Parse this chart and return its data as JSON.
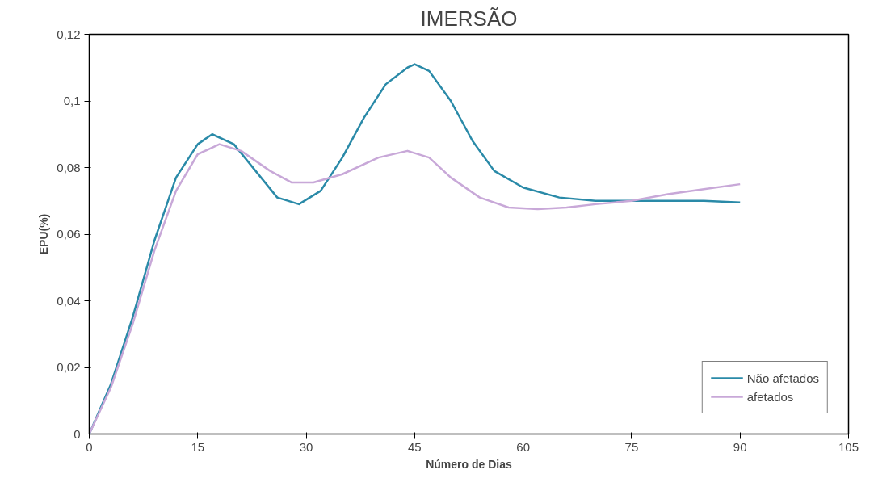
{
  "chart_data": {
    "type": "line",
    "title": "IMERSÃO",
    "xlabel": "Número de Dias",
    "ylabel": "EPU(%)",
    "xlim": [
      0,
      105
    ],
    "xticks": [
      0,
      15,
      30,
      45,
      60,
      75,
      90,
      105
    ],
    "ylim": [
      0,
      0.12
    ],
    "yticks": [
      {
        "value": 0,
        "label": "0"
      },
      {
        "value": 0.02,
        "label": "0,02"
      },
      {
        "value": 0.04,
        "label": "0,04"
      },
      {
        "value": 0.06,
        "label": "0,06"
      },
      {
        "value": 0.08,
        "label": "0,08"
      },
      {
        "value": 0.1,
        "label": "0,1"
      },
      {
        "value": 0.12,
        "label": "0,12"
      }
    ],
    "grid": false,
    "legend": "bottom right",
    "marker": "none",
    "line_style": "solid",
    "series": [
      {
        "name": "Não afetados",
        "color": "#2a8aa8",
        "x": [
          0,
          3,
          6,
          9,
          12,
          15,
          17,
          20,
          23,
          26,
          29,
          32,
          35,
          38,
          41,
          44,
          45,
          47,
          50,
          53,
          56,
          60,
          65,
          70,
          75,
          80,
          85,
          90
        ],
        "values": [
          0,
          0.015,
          0.035,
          0.058,
          0.077,
          0.087,
          0.09,
          0.087,
          0.079,
          0.071,
          0.069,
          0.073,
          0.083,
          0.095,
          0.105,
          0.11,
          0.111,
          0.109,
          0.1,
          0.088,
          0.079,
          0.074,
          0.071,
          0.07,
          0.07,
          0.07,
          0.07,
          0.0695
        ]
      },
      {
        "name": "afetados",
        "color": "#c8a8d8",
        "x": [
          0,
          3,
          6,
          9,
          12,
          15,
          18,
          21,
          25,
          28,
          31,
          35,
          40,
          44,
          47,
          50,
          54,
          58,
          62,
          66,
          70,
          75,
          80,
          85,
          90
        ],
        "values": [
          0,
          0.014,
          0.033,
          0.055,
          0.073,
          0.084,
          0.087,
          0.085,
          0.079,
          0.0755,
          0.0755,
          0.078,
          0.083,
          0.085,
          0.083,
          0.077,
          0.071,
          0.068,
          0.0675,
          0.068,
          0.069,
          0.07,
          0.072,
          0.0735,
          0.075
        ]
      }
    ]
  }
}
